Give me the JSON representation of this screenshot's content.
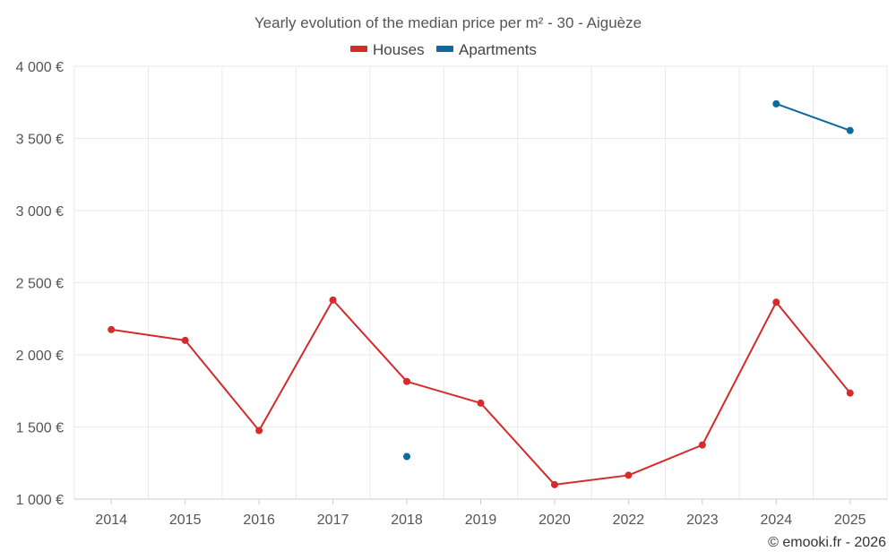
{
  "chart_data": {
    "type": "line",
    "title": "Yearly evolution of the median price per m² - 30 - Aiguèze",
    "categories": [
      "2014",
      "2015",
      "2016",
      "2017",
      "2018",
      "2019",
      "2020",
      "2022",
      "2023",
      "2024",
      "2025"
    ],
    "series": [
      {
        "name": "Houses",
        "color": "#d42b2b",
        "values": [
          2175,
          2100,
          1475,
          2380,
          1815,
          1665,
          1100,
          1165,
          1375,
          2365,
          1735
        ]
      },
      {
        "name": "Apartments",
        "color": "#0b6aa2",
        "values": [
          null,
          null,
          null,
          null,
          1295,
          null,
          null,
          null,
          null,
          3740,
          3555
        ]
      }
    ],
    "y_ticks": [
      {
        "value": 1000,
        "label": "1 000 €"
      },
      {
        "value": 1500,
        "label": "1 500 €"
      },
      {
        "value": 2000,
        "label": "2 000 €"
      },
      {
        "value": 2500,
        "label": "2 500 €"
      },
      {
        "value": 3000,
        "label": "3 000 €"
      },
      {
        "value": 3500,
        "label": "3 500 €"
      },
      {
        "value": 4000,
        "label": "4 000 €"
      }
    ],
    "ylim": [
      1000,
      4000
    ],
    "xlabel": "",
    "ylabel": "",
    "grid": true,
    "legend_position": "top-center",
    "credit": "© emooki.fr - 2026"
  }
}
